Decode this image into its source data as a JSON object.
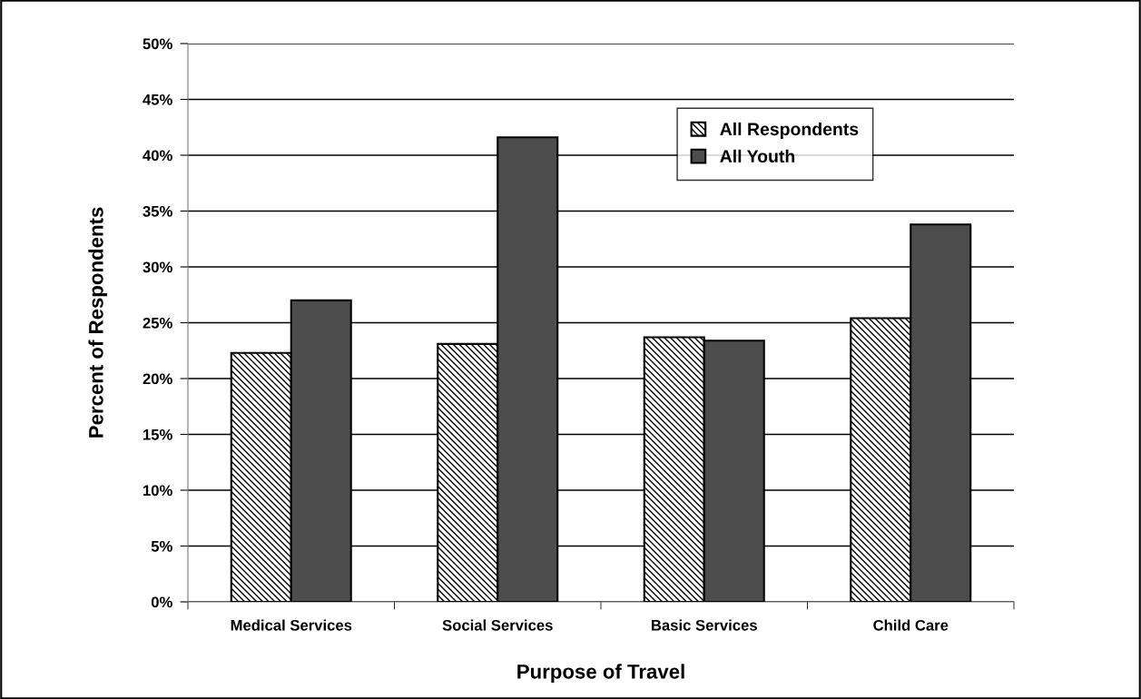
{
  "chart_data": {
    "type": "bar",
    "xlabel": "Purpose of Travel",
    "ylabel": "Percent of Respondents",
    "categories": [
      "Medical Services",
      "Social Services",
      "Basic Services",
      "Child Care"
    ],
    "series": [
      {
        "name": "All Respondents",
        "color": "#000000",
        "values": [
          22.3,
          23.1,
          23.7,
          25.4
        ]
      },
      {
        "name": "All Youth",
        "color": "#4d4d4d",
        "values": [
          27.0,
          41.6,
          23.4,
          33.8
        ]
      }
    ],
    "ylim": [
      0,
      50
    ],
    "yticks": [
      {
        "value": 0,
        "label": "0%"
      },
      {
        "value": 5,
        "label": "5%"
      },
      {
        "value": 10,
        "label": "10%"
      },
      {
        "value": 15,
        "label": "15%"
      },
      {
        "value": 20,
        "label": "20%"
      },
      {
        "value": 25,
        "label": "25%"
      },
      {
        "value": 30,
        "label": "30%"
      },
      {
        "value": 35,
        "label": "35%"
      },
      {
        "value": 40,
        "label": "40%"
      },
      {
        "value": 45,
        "label": "45%"
      },
      {
        "value": 50,
        "label": "50%"
      }
    ],
    "grid": "y",
    "legend": "top right"
  }
}
